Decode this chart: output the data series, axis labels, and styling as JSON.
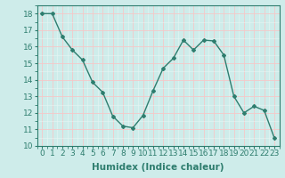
{
  "x": [
    0,
    1,
    2,
    3,
    4,
    5,
    6,
    7,
    8,
    9,
    10,
    11,
    12,
    13,
    14,
    15,
    16,
    17,
    18,
    19,
    20,
    21,
    22,
    23
  ],
  "y": [
    18.0,
    18.0,
    16.6,
    15.8,
    15.2,
    13.85,
    13.25,
    11.8,
    11.2,
    11.1,
    11.85,
    13.35,
    14.7,
    15.3,
    16.4,
    15.8,
    16.4,
    16.35,
    15.5,
    13.0,
    12.0,
    12.4,
    12.15,
    10.5
  ],
  "xlabel": "Humidex (Indice chaleur)",
  "ylabel": "",
  "xlim": [
    -0.5,
    23.5
  ],
  "ylim": [
    10,
    18.5
  ],
  "yticks": [
    10,
    11,
    12,
    13,
    14,
    15,
    16,
    17,
    18
  ],
  "xticks": [
    0,
    1,
    2,
    3,
    4,
    5,
    6,
    7,
    8,
    9,
    10,
    11,
    12,
    13,
    14,
    15,
    16,
    17,
    18,
    19,
    20,
    21,
    22,
    23
  ],
  "line_color": "#2e7d6e",
  "marker": "D",
  "marker_size": 2.0,
  "line_width": 1.0,
  "bg_color": "#ceecea",
  "grid_color_major": "#f5c8c8",
  "grid_color_minor": "#e8f5f4",
  "xlabel_fontsize": 7.5,
  "tick_fontsize": 6.5
}
